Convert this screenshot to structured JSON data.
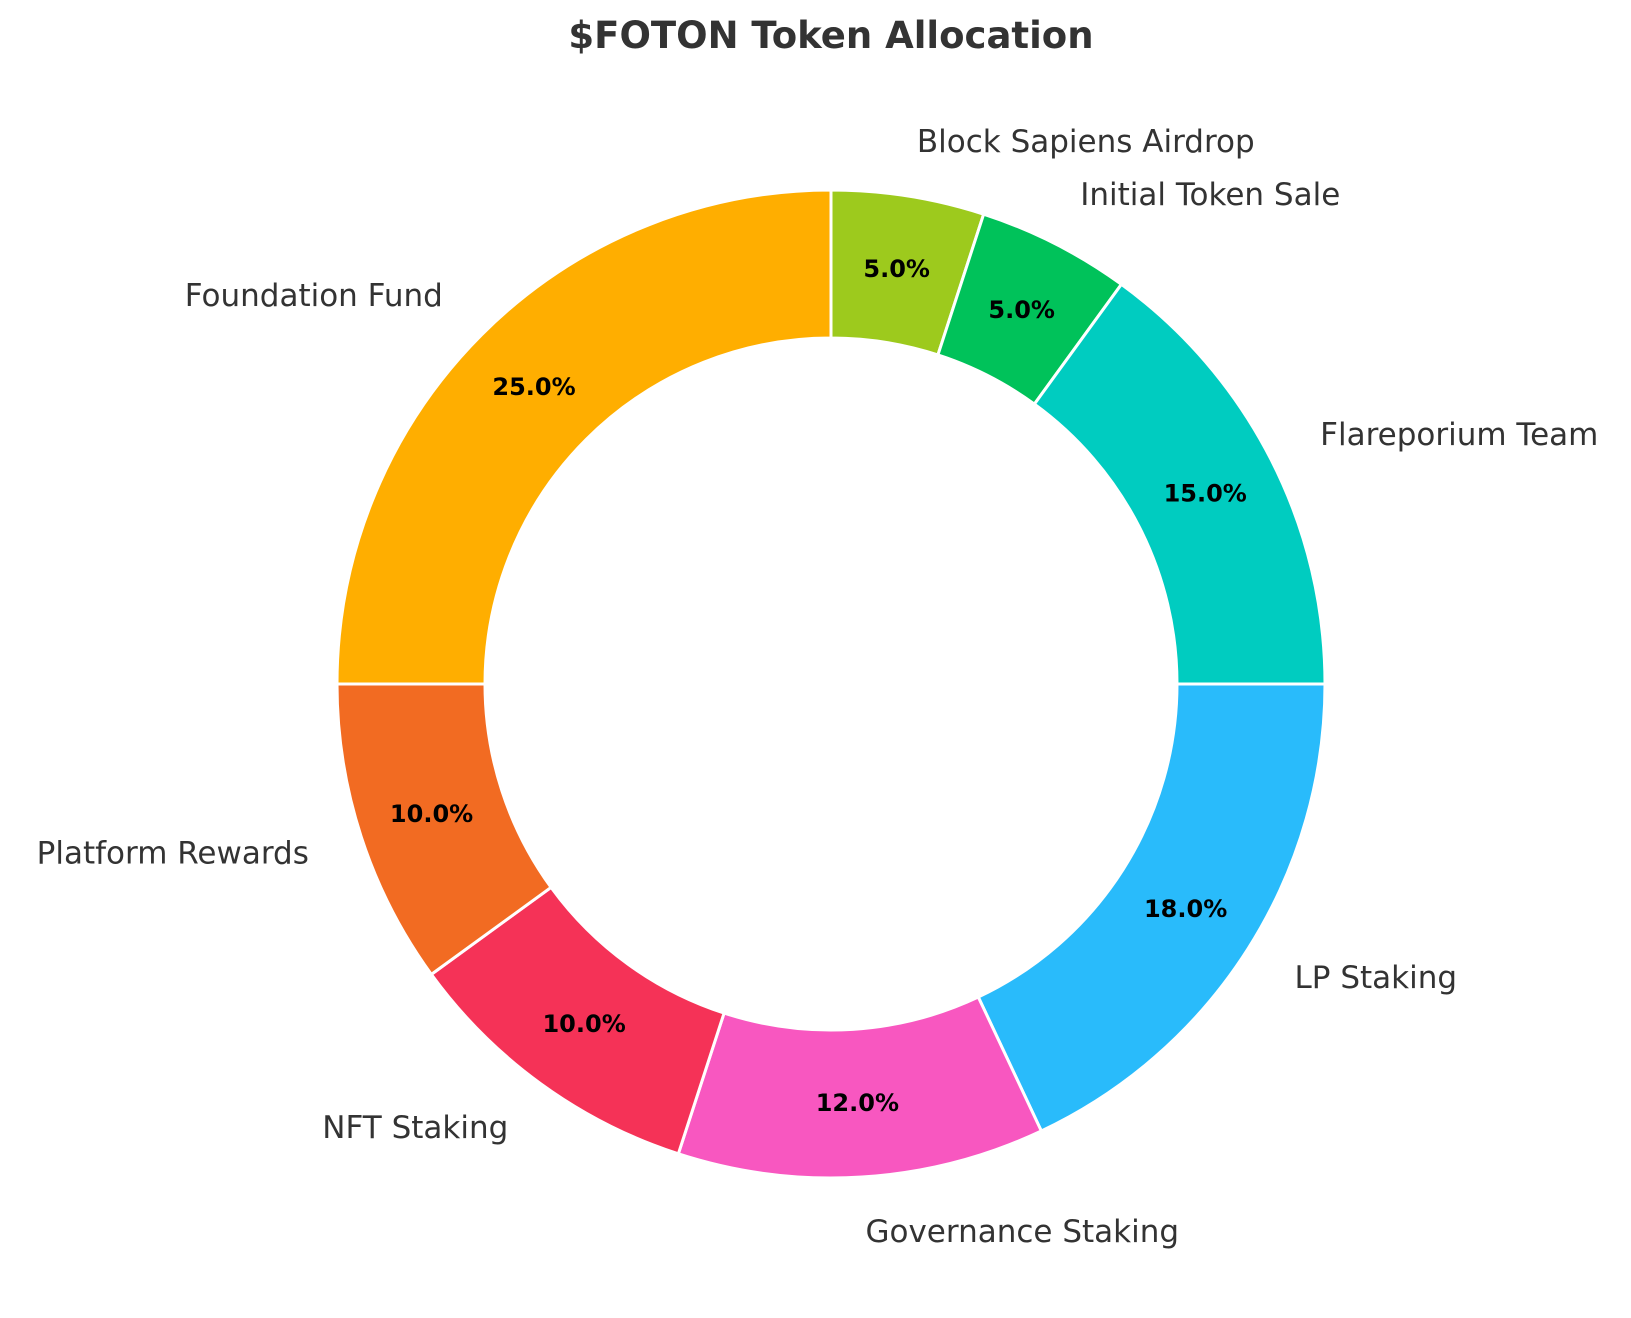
{
  "chart_data": {
    "type": "pie",
    "variant": "donut",
    "title": "$FOTON Token Allocation",
    "start_angle_deg": 90,
    "direction": "clockwise",
    "slices": [
      {
        "label": "Block Sapiens Airdrop",
        "value": 5.0,
        "pct_label": "5.0%",
        "color": "#9DCA1D"
      },
      {
        "label": "Initial Token Sale",
        "value": 5.0,
        "pct_label": "5.0%",
        "color": "#00C25A"
      },
      {
        "label": "Flareporium Team",
        "value": 15.0,
        "pct_label": "15.0%",
        "color": "#00CCC0"
      },
      {
        "label": "LP Staking",
        "value": 18.0,
        "pct_label": "18.0%",
        "color": "#29BBFB"
      },
      {
        "label": "Governance Staking",
        "value": 12.0,
        "pct_label": "12.0%",
        "color": "#F857C0"
      },
      {
        "label": "NFT Staking",
        "value": 10.0,
        "pct_label": "10.0%",
        "color": "#F53257"
      },
      {
        "label": "Platform Rewards",
        "value": 10.0,
        "pct_label": "10.0%",
        "color": "#F26B22"
      },
      {
        "label": "Foundation Fund",
        "value": 25.0,
        "pct_label": "25.0%",
        "color": "#FFAE00"
      }
    ]
  }
}
